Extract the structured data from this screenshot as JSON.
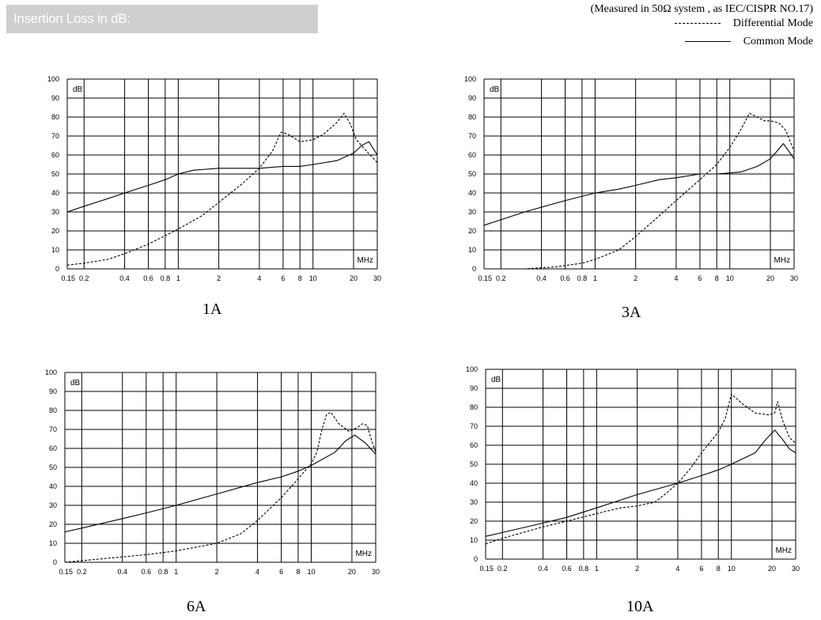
{
  "header": {
    "title": "Insertion Loss in dB:",
    "note": "(Measured in 50Ω system , as IEC/CISPR NO.17)",
    "legend": [
      {
        "label": "Differential  Mode",
        "style": "dashed"
      },
      {
        "label": "Common  Mode",
        "style": "solid"
      }
    ]
  },
  "chart_data": [
    {
      "type": "line",
      "title": "1A",
      "xlabel": "MHz",
      "ylabel": "dB",
      "xscale": "log",
      "xlim": [
        0.15,
        30
      ],
      "ylim": [
        0,
        100
      ],
      "grid": true,
      "xticks": [
        0.15,
        0.2,
        0.4,
        0.6,
        0.8,
        1,
        2,
        4,
        6,
        8,
        10,
        20,
        30
      ],
      "xtick_labels": [
        "0.15",
        "0.2",
        "0.4",
        "0.6",
        "0.8",
        "1",
        "2",
        "4",
        "6",
        "8",
        "10",
        "20",
        "30"
      ],
      "yticks": [
        0,
        10,
        20,
        30,
        40,
        50,
        60,
        70,
        80,
        90,
        100
      ],
      "series": [
        {
          "name": "Differential Mode",
          "style": "dashed",
          "x": [
            0.15,
            0.2,
            0.3,
            0.4,
            0.6,
            1,
            1.5,
            2,
            3,
            4,
            5,
            5.8,
            6.5,
            8,
            10,
            12,
            15,
            17,
            19,
            21,
            25,
            30
          ],
          "y": [
            2,
            3,
            5,
            8,
            13,
            21,
            28,
            35,
            45,
            53,
            62,
            72,
            71,
            67,
            68,
            71,
            77,
            82,
            76,
            68,
            62,
            56
          ]
        },
        {
          "name": "Common Mode",
          "style": "solid",
          "x": [
            0.15,
            0.2,
            0.3,
            0.4,
            0.6,
            0.8,
            1,
            1.3,
            2,
            4,
            6,
            8,
            10,
            15,
            20,
            23,
            26,
            30
          ],
          "y": [
            30,
            33,
            37,
            40,
            44,
            47,
            50,
            52,
            53,
            53,
            54,
            54,
            55,
            57,
            61,
            65,
            67,
            60
          ]
        }
      ]
    },
    {
      "type": "line",
      "title": "3A",
      "xlabel": "MHz",
      "ylabel": "dB",
      "xscale": "log",
      "xlim": [
        0.15,
        30
      ],
      "ylim": [
        0,
        100
      ],
      "grid": true,
      "xticks": [
        0.15,
        0.2,
        0.4,
        0.6,
        0.8,
        1,
        2,
        4,
        6,
        8,
        10,
        20,
        30
      ],
      "xtick_labels": [
        "0.15",
        "0.2",
        "0.4",
        "0.6",
        "0.8",
        "1",
        "2",
        "4",
        "6",
        "8",
        "10",
        "20",
        "30"
      ],
      "yticks": [
        0,
        10,
        20,
        30,
        40,
        50,
        60,
        70,
        80,
        90,
        100
      ],
      "series": [
        {
          "name": "Differential Mode",
          "style": "dashed",
          "x": [
            0.15,
            0.3,
            0.5,
            0.8,
            1,
            1.5,
            2,
            3,
            4,
            6,
            8,
            10,
            12,
            14,
            16,
            18,
            20,
            23,
            26,
            30
          ],
          "y": [
            0,
            0,
            1,
            3,
            5,
            10,
            17,
            28,
            36,
            47,
            55,
            64,
            73,
            82,
            80,
            78,
            78,
            77,
            73,
            62
          ]
        },
        {
          "name": "Common Mode",
          "style": "solid",
          "x": [
            0.15,
            0.3,
            0.6,
            1,
            1.5,
            2,
            3,
            4,
            6,
            8,
            12,
            16,
            20,
            25,
            30
          ],
          "y": [
            23,
            30,
            36,
            40,
            42,
            44,
            47,
            48,
            50,
            50,
            51,
            54,
            58,
            66,
            58
          ]
        }
      ]
    },
    {
      "type": "line",
      "title": "6A",
      "xlabel": "MHz",
      "ylabel": "dB",
      "xscale": "log",
      "xlim": [
        0.15,
        30
      ],
      "ylim": [
        0,
        100
      ],
      "grid": true,
      "xticks": [
        0.15,
        0.2,
        0.4,
        0.6,
        0.8,
        1,
        2,
        4,
        6,
        8,
        10,
        20,
        30
      ],
      "xtick_labels": [
        "0.15",
        "0.2",
        "0.4",
        "0.6",
        "0.8",
        "1",
        "2",
        "4",
        "6",
        "8",
        "10",
        "20",
        "30"
      ],
      "yticks": [
        0,
        10,
        20,
        30,
        40,
        50,
        60,
        70,
        80,
        90,
        100
      ],
      "series": [
        {
          "name": "Differential Mode",
          "style": "dashed",
          "x": [
            0.15,
            0.3,
            0.6,
            1,
            2,
            3,
            4,
            6,
            8,
            10,
            11,
            12,
            13,
            14,
            16,
            19,
            22,
            24,
            26,
            28,
            30
          ],
          "y": [
            0,
            2,
            4,
            6,
            10,
            15,
            22,
            34,
            44,
            52,
            58,
            70,
            78,
            79,
            73,
            69,
            71,
            73,
            72,
            64,
            58
          ]
        },
        {
          "name": "Common Mode",
          "style": "solid",
          "x": [
            0.15,
            0.2,
            0.4,
            0.6,
            1,
            2,
            4,
            6,
            8,
            10,
            15,
            18,
            21,
            25,
            30
          ],
          "y": [
            16,
            18,
            23,
            26,
            30,
            36,
            42,
            45,
            48,
            51,
            58,
            64,
            67,
            63,
            57
          ]
        }
      ]
    },
    {
      "type": "line",
      "title": "10A",
      "xlabel": "MHz",
      "ylabel": "dB",
      "xscale": "log",
      "xlim": [
        0.15,
        30
      ],
      "ylim": [
        0,
        100
      ],
      "grid": true,
      "xticks": [
        0.15,
        0.2,
        0.4,
        0.6,
        0.8,
        1,
        2,
        4,
        6,
        8,
        10,
        20,
        30
      ],
      "xtick_labels": [
        "0.15",
        "0.2",
        "0.4",
        "0.6",
        "0.8",
        "1",
        "2",
        "4",
        "6",
        "8",
        "10",
        "20",
        "30"
      ],
      "yticks": [
        0,
        10,
        20,
        30,
        40,
        50,
        60,
        70,
        80,
        90,
        100
      ],
      "series": [
        {
          "name": "Differential Mode",
          "style": "dashed",
          "x": [
            0.15,
            0.2,
            0.4,
            0.6,
            1,
            1.5,
            2,
            2.7,
            3.2,
            4,
            5,
            6,
            8,
            9,
            10,
            12,
            15,
            19,
            21,
            22,
            24,
            27,
            30
          ],
          "y": [
            8,
            11,
            17,
            20,
            24,
            27,
            28,
            30,
            34,
            40,
            48,
            56,
            67,
            74,
            87,
            82,
            77,
            76,
            77,
            83,
            73,
            64,
            61
          ]
        },
        {
          "name": "Common Mode",
          "style": "solid",
          "x": [
            0.15,
            0.2,
            0.4,
            0.6,
            1,
            2,
            4,
            6,
            8,
            10,
            15,
            18,
            21,
            24,
            27,
            30
          ],
          "y": [
            12,
            14,
            19,
            22,
            27,
            34,
            40,
            44,
            47,
            50,
            56,
            63,
            68,
            63,
            58,
            56
          ]
        }
      ]
    }
  ]
}
